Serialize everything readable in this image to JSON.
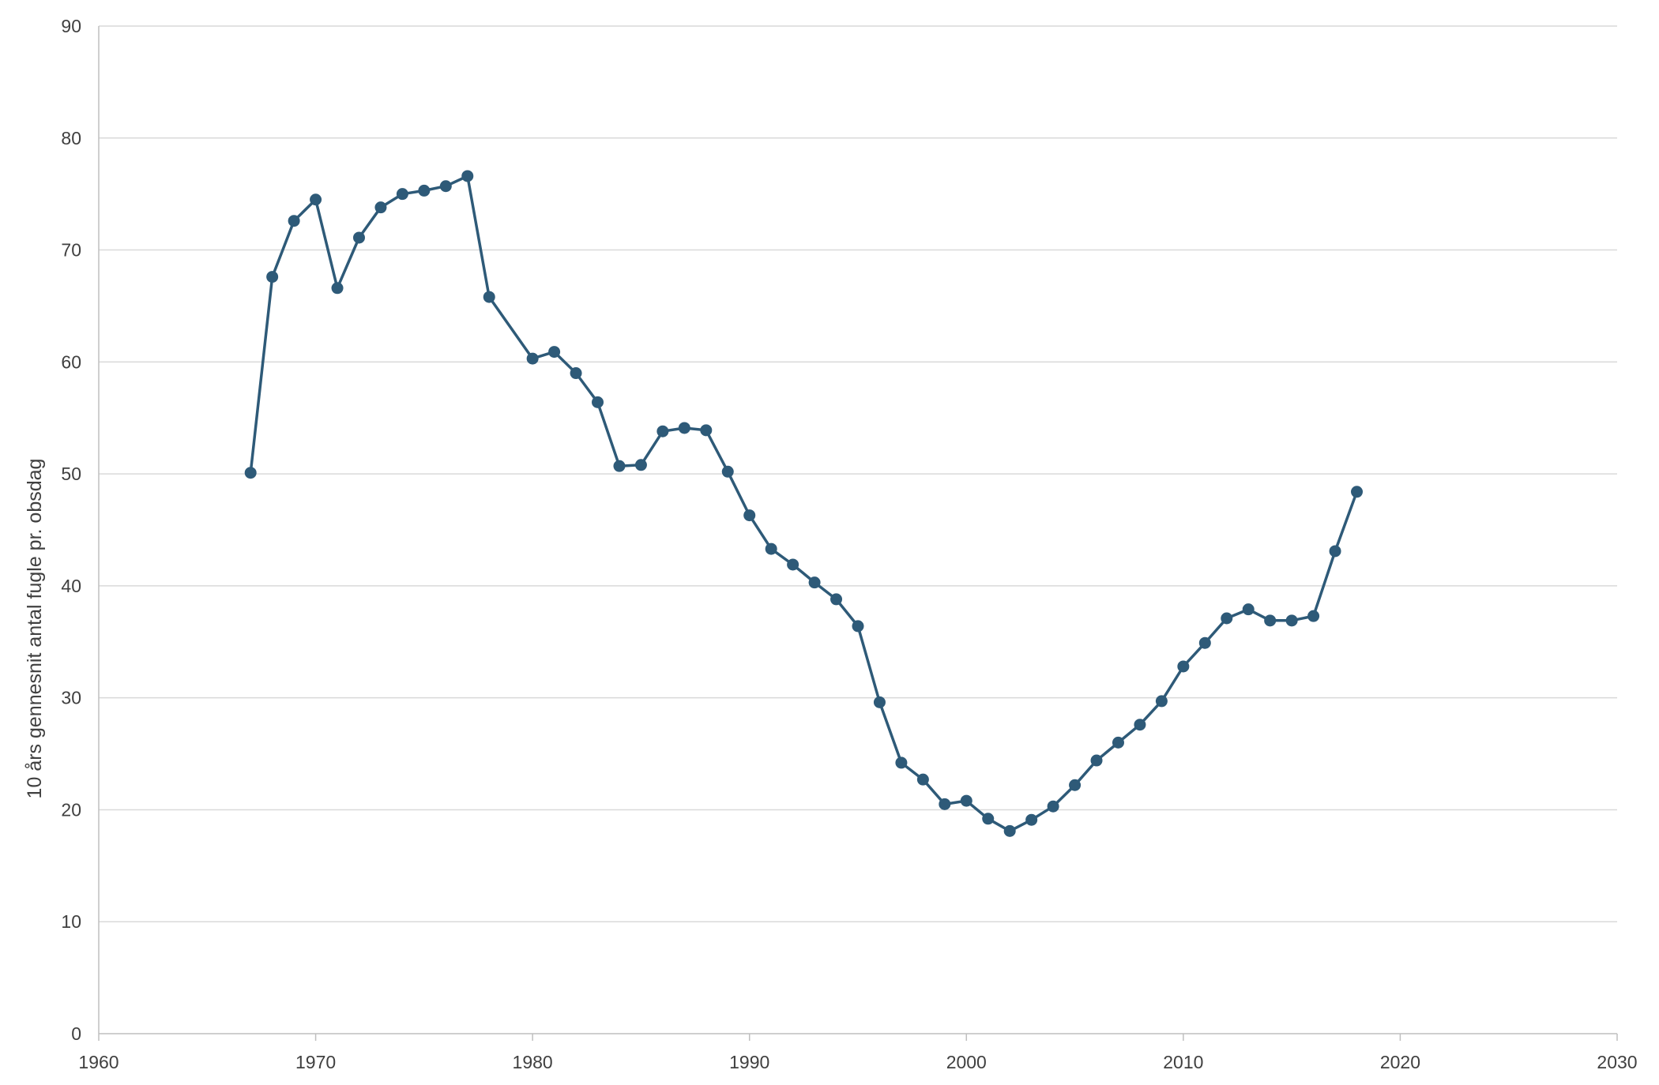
{
  "chart_data": {
    "type": "scatter",
    "title": "",
    "xlabel": "",
    "ylabel": "10 års gennesnit antal fugle pr. obsdag",
    "xlim": [
      1960,
      2030
    ],
    "ylim": [
      0,
      90
    ],
    "xticks": [
      1960,
      1970,
      1980,
      1990,
      2000,
      2010,
      2020,
      2030
    ],
    "yticks": [
      0,
      10,
      20,
      30,
      40,
      50,
      60,
      70,
      80,
      90
    ],
    "grid": true,
    "legend": "none",
    "color": "#2e5a78",
    "series": [
      {
        "x": [
          1967,
          1968,
          1969,
          1970,
          1971,
          1972,
          1973,
          1974,
          1975,
          1976,
          1977,
          1978,
          1980,
          1981,
          1982,
          1983,
          1984,
          1985,
          1986,
          1987,
          1988,
          1989,
          1990,
          1991,
          1992,
          1993,
          1994,
          1995,
          1996,
          1997,
          1998,
          1999,
          2000,
          2001,
          2002,
          2003,
          2004,
          2005,
          2006,
          2007,
          2008,
          2009,
          2010,
          2011,
          2012,
          2013,
          2014,
          2015,
          2016,
          2017,
          2018
        ],
        "y": [
          50.1,
          67.6,
          72.6,
          74.5,
          66.6,
          71.1,
          73.8,
          75.0,
          75.3,
          75.7,
          76.6,
          65.8,
          60.3,
          60.9,
          59.0,
          56.4,
          50.7,
          50.8,
          53.8,
          54.1,
          53.9,
          50.2,
          46.3,
          43.3,
          41.9,
          40.3,
          38.8,
          36.4,
          29.6,
          24.2,
          22.7,
          20.5,
          20.8,
          19.2,
          18.1,
          19.1,
          20.3,
          22.2,
          24.4,
          26.0,
          27.6,
          29.7,
          32.8,
          34.9,
          37.1,
          37.9,
          36.9,
          36.9,
          37.3,
          43.1,
          48.4
        ]
      }
    ]
  }
}
